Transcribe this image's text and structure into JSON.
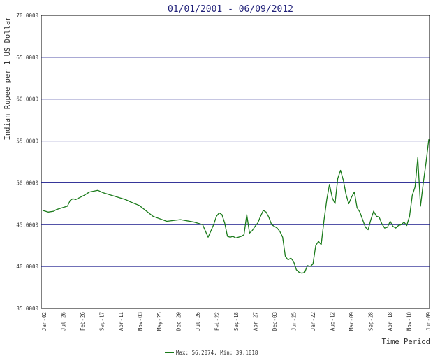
{
  "chart_data": {
    "type": "line",
    "title": "01/01/2001 - 06/09/2012",
    "xlabel": "Time Period",
    "ylabel": "Indian Rupee per 1 US Dollar",
    "ylim": [
      35,
      70
    ],
    "y_ticks": [
      "35.0000",
      "40.0000",
      "45.0000",
      "50.0000",
      "55.0000",
      "60.0000",
      "65.0000",
      "70.0000"
    ],
    "x_ticks": [
      "Jan-02",
      "Jul-26",
      "Feb-26",
      "Sep-17",
      "Apr-11",
      "Nov-03",
      "May-25",
      "Dec-20",
      "Jul-26",
      "Feb-22",
      "Sep-18",
      "Apr-27",
      "Dec-03",
      "Jun-25",
      "Jan-22",
      "Aug-12",
      "Mar-09",
      "Sep-28",
      "Apr-18",
      "Nov-10",
      "Jun-09"
    ],
    "grid": "horizontal",
    "legend_position": "bottom",
    "legend_text": "Max: 56.2074, Min: 39.1018",
    "series": [
      {
        "color": "#1a7a1a",
        "x": [
          0,
          2,
          4,
          5,
          7,
          9,
          10,
          11,
          12,
          15,
          17,
          20,
          22,
          25,
          27,
          30,
          32,
          35,
          40,
          45,
          50,
          55,
          58,
          60,
          62,
          63,
          64,
          65,
          66,
          67,
          68,
          69,
          70,
          71,
          72,
          73,
          74,
          75,
          76,
          77,
          78,
          79,
          80,
          81,
          82,
          83,
          84,
          85,
          86,
          87,
          88,
          89,
          90,
          91,
          92,
          93,
          94,
          95,
          96,
          97,
          98,
          99,
          100,
          101,
          102,
          103,
          104,
          105,
          106,
          107,
          108,
          109,
          110,
          111,
          112,
          113,
          114,
          115,
          116,
          117,
          118,
          119,
          120,
          121,
          122,
          123,
          124,
          125,
          126,
          127,
          128,
          129,
          130,
          131,
          132,
          133,
          134,
          135,
          136,
          137,
          138,
          139,
          140
        ],
        "values": [
          46.7,
          46.5,
          46.6,
          46.8,
          47.0,
          47.2,
          47.9,
          48.1,
          48.0,
          48.5,
          48.9,
          49.1,
          48.8,
          48.5,
          48.3,
          48.0,
          47.7,
          47.3,
          46.0,
          45.4,
          45.6,
          45.3,
          45.0,
          43.5,
          45.0,
          46.0,
          46.4,
          46.2,
          45.2,
          43.6,
          43.5,
          43.6,
          43.4,
          43.5,
          43.6,
          43.8,
          46.2,
          44.0,
          44.3,
          44.8,
          45.2,
          46.0,
          46.7,
          46.5,
          45.9,
          45.0,
          44.8,
          44.6,
          44.2,
          43.5,
          41.2,
          40.8,
          41.0,
          40.6,
          39.6,
          39.3,
          39.2,
          39.3,
          40.1,
          40.0,
          40.3,
          42.5,
          43.0,
          42.6,
          45.5,
          48.0,
          49.8,
          48.2,
          47.5,
          50.5,
          51.5,
          50.3,
          48.6,
          47.5,
          48.3,
          48.9,
          47.0,
          46.5,
          45.6,
          44.7,
          44.4,
          45.6,
          46.6,
          46.0,
          45.9,
          45.1,
          44.6,
          44.7,
          45.4,
          44.8,
          44.6,
          44.9,
          45.0,
          45.3,
          44.9,
          46.0,
          48.5,
          49.5,
          53.0,
          47.2,
          50.0,
          52.5,
          55.2
        ]
      }
    ]
  }
}
